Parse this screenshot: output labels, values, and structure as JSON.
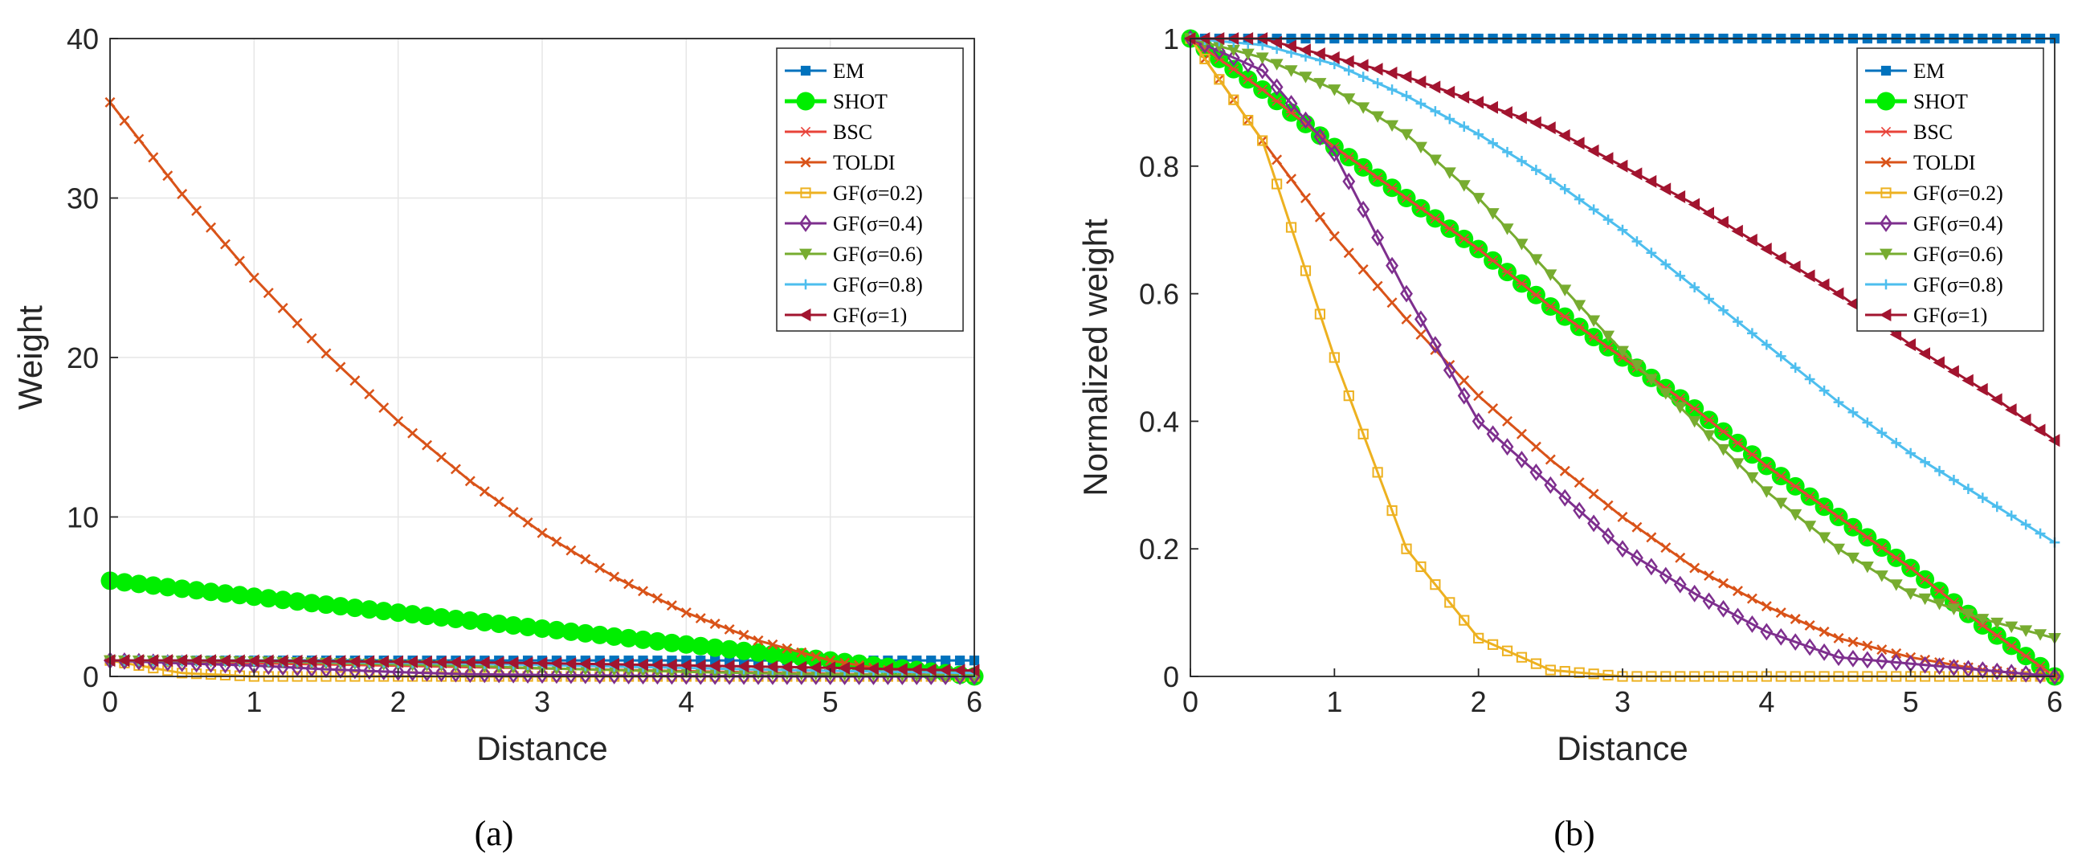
{
  "legend_entries": [
    "EM",
    "SHOT",
    "BSC",
    "TOLDI",
    "GF(σ=0.2)",
    "GF(σ=0.4)",
    "GF(σ=0.6)",
    "GF(σ=0.8)",
    "GF(σ=1)"
  ],
  "series_styles": [
    {
      "color": "#0072BD",
      "marker": "square-filled"
    },
    {
      "color": "#00EE00",
      "marker": "circle-filled"
    },
    {
      "color": "#E8433A",
      "marker": "star"
    },
    {
      "color": "#D95319",
      "marker": "x"
    },
    {
      "color": "#EDB120",
      "marker": "square-open"
    },
    {
      "color": "#7E2F8E",
      "marker": "diamond"
    },
    {
      "color": "#77AC30",
      "marker": "triangle-down"
    },
    {
      "color": "#4DBEEE",
      "marker": "plus"
    },
    {
      "color": "#A2142F",
      "marker": "triangle-left"
    }
  ],
  "chart_data": [
    {
      "type": "line",
      "panel_label": "(a)",
      "xlabel": "Distance",
      "ylabel": "Weight",
      "xlim": [
        0,
        6
      ],
      "ylim": [
        0,
        40
      ],
      "xticks": [
        "0",
        "1",
        "2",
        "3",
        "4",
        "5",
        "6"
      ],
      "yticks": [
        "0",
        "10",
        "20",
        "30",
        "40"
      ],
      "grid": true,
      "legend_position": "top-right",
      "x": [
        0,
        0.5,
        1,
        1.5,
        2,
        2.5,
        3,
        3.5,
        4,
        4.5,
        5,
        5.5,
        6
      ],
      "series": [
        {
          "name": "EM",
          "values": [
            1,
            1,
            1,
            1,
            1,
            1,
            1,
            1,
            1,
            1,
            1,
            1,
            1
          ]
        },
        {
          "name": "SHOT",
          "values": [
            6,
            5.5,
            5,
            4.5,
            4,
            3.5,
            3,
            2.5,
            2,
            1.5,
            1,
            0.5,
            0
          ]
        },
        {
          "name": "BSC",
          "values": [
            1,
            0.92,
            0.83,
            0.75,
            0.67,
            0.58,
            0.5,
            0.42,
            0.33,
            0.25,
            0.17,
            0.08,
            0
          ]
        },
        {
          "name": "TOLDI",
          "values": [
            36,
            30.25,
            25,
            20.25,
            16,
            12.25,
            9,
            6.25,
            4,
            2.25,
            1,
            0.25,
            0
          ]
        },
        {
          "name": "GF(σ=0.2)",
          "values": [
            1,
            0.21,
            0,
            0,
            0,
            0,
            0,
            0,
            0,
            0,
            0,
            0,
            0
          ]
        },
        {
          "name": "GF(σ=0.4)",
          "values": [
            1,
            0.82,
            0.68,
            0.45,
            0.27,
            0.14,
            0.09,
            0.05,
            0.02,
            0.01,
            0.005,
            0,
            0
          ]
        },
        {
          "name": "GF(σ=0.6)",
          "values": [
            1,
            0.97,
            0.94,
            0.85,
            0.75,
            0.66,
            0.51,
            0.4,
            0.29,
            0.2,
            0.13,
            0.09,
            0.06
          ]
        },
        {
          "name": "GF(σ=0.8)",
          "values": [
            1,
            0.99,
            0.97,
            0.92,
            0.86,
            0.8,
            0.71,
            0.62,
            0.53,
            0.43,
            0.35,
            0.28,
            0.21
          ]
        },
        {
          "name": "GF(σ=1)",
          "values": [
            1,
            1,
            0.98,
            0.95,
            0.92,
            0.88,
            0.83,
            0.76,
            0.69,
            0.62,
            0.54,
            0.45,
            0.37
          ]
        }
      ]
    },
    {
      "type": "line",
      "panel_label": "(b)",
      "xlabel": "Distance",
      "ylabel": "Normalized weight",
      "xlim": [
        0,
        6
      ],
      "ylim": [
        0,
        1
      ],
      "xticks": [
        "0",
        "1",
        "2",
        "3",
        "4",
        "5",
        "6"
      ],
      "yticks": [
        "0",
        "0.2",
        "0.4",
        "0.6",
        "0.8",
        "1"
      ],
      "grid": false,
      "legend_position": "top-right",
      "x": [
        0,
        0.5,
        1,
        1.5,
        2,
        2.5,
        3,
        3.5,
        4,
        4.5,
        5,
        5.5,
        6
      ],
      "series": [
        {
          "name": "EM",
          "values": [
            1,
            1,
            1,
            1,
            1,
            1,
            1,
            1,
            1,
            1,
            1,
            1,
            1
          ]
        },
        {
          "name": "SHOT",
          "values": [
            1,
            0.92,
            0.83,
            0.75,
            0.67,
            0.58,
            0.5,
            0.42,
            0.33,
            0.25,
            0.17,
            0.08,
            0
          ]
        },
        {
          "name": "BSC",
          "values": [
            1,
            0.92,
            0.83,
            0.75,
            0.67,
            0.58,
            0.5,
            0.42,
            0.33,
            0.25,
            0.17,
            0.08,
            0
          ]
        },
        {
          "name": "TOLDI",
          "values": [
            1,
            0.84,
            0.69,
            0.56,
            0.44,
            0.34,
            0.25,
            0.17,
            0.11,
            0.06,
            0.03,
            0.01,
            0
          ]
        },
        {
          "name": "GF(σ=0.2)",
          "values": [
            1,
            0.84,
            0.5,
            0.2,
            0.06,
            0.01,
            0,
            0,
            0,
            0,
            0,
            0,
            0
          ]
        },
        {
          "name": "GF(σ=0.4)",
          "values": [
            1,
            0.95,
            0.82,
            0.6,
            0.4,
            0.3,
            0.2,
            0.13,
            0.07,
            0.03,
            0.02,
            0.01,
            0
          ]
        },
        {
          "name": "GF(σ=0.6)",
          "values": [
            1,
            0.97,
            0.92,
            0.85,
            0.75,
            0.63,
            0.51,
            0.4,
            0.29,
            0.2,
            0.13,
            0.09,
            0.06
          ]
        },
        {
          "name": "GF(σ=0.8)",
          "values": [
            1,
            0.99,
            0.96,
            0.91,
            0.85,
            0.78,
            0.7,
            0.61,
            0.52,
            0.43,
            0.35,
            0.28,
            0.21
          ]
        },
        {
          "name": "GF(σ=1)",
          "values": [
            1,
            1,
            0.97,
            0.94,
            0.9,
            0.86,
            0.8,
            0.74,
            0.67,
            0.6,
            0.52,
            0.45,
            0.37
          ]
        }
      ]
    }
  ]
}
